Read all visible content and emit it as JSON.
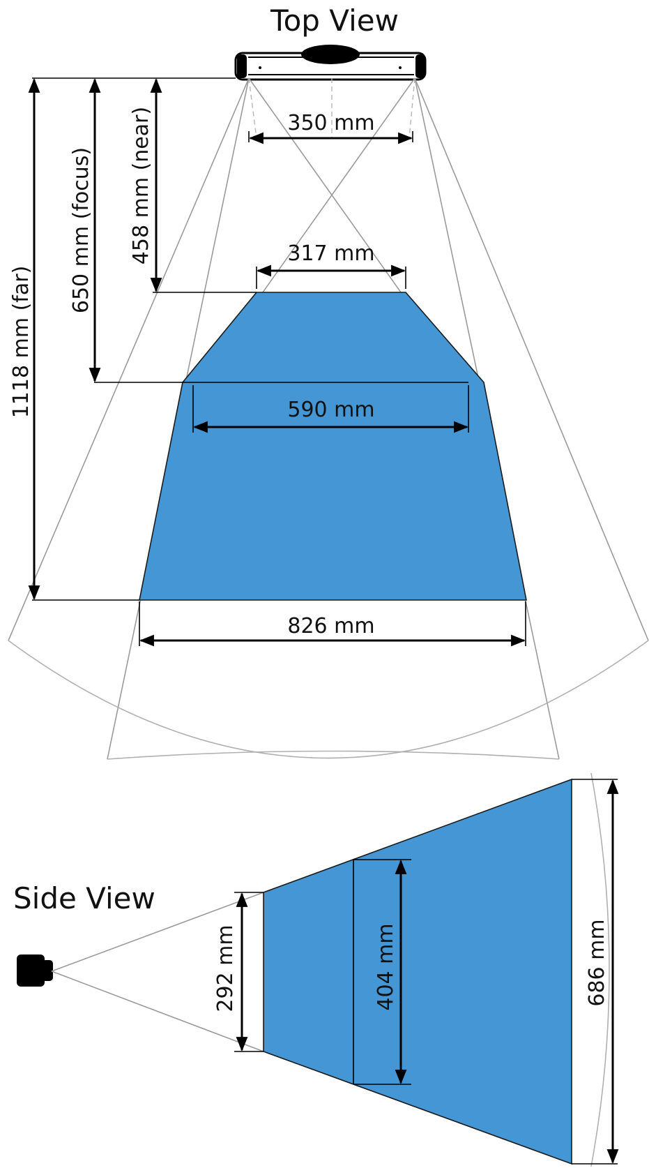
{
  "top_view": {
    "title": "Top View",
    "width_at_sensor": "350 mm",
    "near_width": "317 mm",
    "focus_width": "590 mm",
    "far_width": "826 mm",
    "near_distance": "458 mm (near)",
    "focus_distance": "650 mm (focus)",
    "far_distance": "1118 mm (far)"
  },
  "side_view": {
    "title": "Side View",
    "near_height": "292 mm",
    "focus_height": "404 mm",
    "far_height": "686 mm"
  },
  "colors": {
    "field_fill": "#4496d4",
    "outline": "#1a1a1a",
    "construction_lines": "#9a9a9a"
  }
}
